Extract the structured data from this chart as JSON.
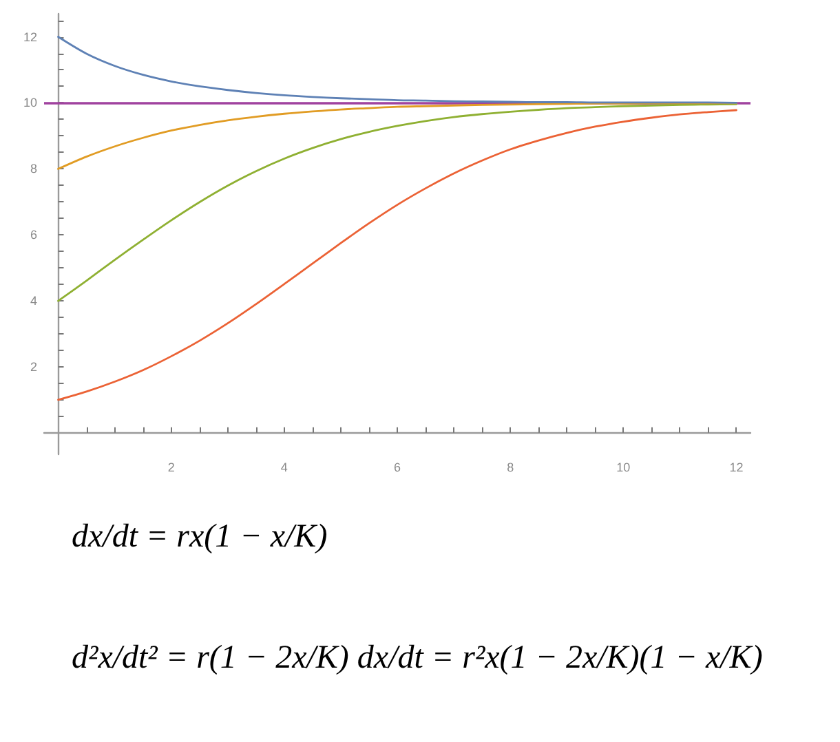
{
  "chart_data": {
    "type": "line",
    "x": [
      0,
      0.5,
      1,
      1.5,
      2,
      2.5,
      3,
      3.5,
      4,
      4.5,
      5,
      5.5,
      6,
      6.5,
      7,
      7.5,
      8,
      8.5,
      9,
      9.5,
      10,
      10.5,
      11,
      11.5,
      12
    ],
    "series": [
      {
        "color": "#5e81b5",
        "values": [
          12.0,
          11.49,
          11.12,
          10.85,
          10.65,
          10.5,
          10.39,
          10.3,
          10.23,
          10.18,
          10.14,
          10.11,
          10.08,
          10.07,
          10.05,
          10.04,
          10.03,
          10.02,
          10.02,
          10.01,
          10.01,
          10.01,
          10.01,
          10.01,
          10.0
        ]
      },
      {
        "color": "#e19c24",
        "values": [
          8.0,
          8.37,
          8.68,
          8.94,
          9.16,
          9.33,
          9.47,
          9.58,
          9.67,
          9.74,
          9.8,
          9.84,
          9.88,
          9.9,
          9.92,
          9.94,
          9.95,
          9.96,
          9.97,
          9.98,
          9.98,
          9.99,
          9.99,
          9.99,
          9.99
        ]
      },
      {
        "color": "#8fb032",
        "values": [
          4.0,
          4.61,
          5.24,
          5.85,
          6.44,
          6.99,
          7.49,
          7.93,
          8.31,
          8.63,
          8.9,
          9.12,
          9.3,
          9.45,
          9.57,
          9.66,
          9.73,
          9.79,
          9.84,
          9.87,
          9.9,
          9.92,
          9.94,
          9.95,
          9.96
        ]
      },
      {
        "color": "#eb6235",
        "values": [
          1.0,
          1.25,
          1.55,
          1.9,
          2.32,
          2.79,
          3.32,
          3.9,
          4.51,
          5.13,
          5.75,
          6.35,
          6.91,
          7.41,
          7.86,
          8.25,
          8.59,
          8.86,
          9.09,
          9.28,
          9.43,
          9.55,
          9.65,
          9.72,
          9.78
        ]
      }
    ],
    "xlim": [
      -0.25,
      12.25
    ],
    "ylim": [
      -0.65,
      12.7
    ],
    "xticks": [
      {
        "value": 0.5,
        "label": null
      },
      {
        "value": 1,
        "label": null
      },
      {
        "value": 1.5,
        "label": null
      },
      2,
      {
        "value": 2.5,
        "label": null
      },
      {
        "value": 3,
        "label": null
      },
      {
        "value": 3.5,
        "label": null
      },
      4,
      {
        "value": 4.5,
        "label": null
      },
      {
        "value": 5,
        "label": null
      },
      {
        "value": 5.5,
        "label": null
      },
      6,
      {
        "value": 6.5,
        "label": null
      },
      {
        "value": 7,
        "label": null
      },
      {
        "value": 7.5,
        "label": null
      },
      8,
      {
        "value": 8.5,
        "label": null
      },
      {
        "value": 9,
        "label": null
      },
      {
        "value": 9.5,
        "label": null
      },
      10,
      {
        "value": 10.5,
        "label": null
      },
      {
        "value": 11,
        "label": null
      },
      {
        "value": 11.5,
        "label": null
      },
      12
    ],
    "yticks": [
      {
        "value": 0.5,
        "label": null
      },
      {
        "value": 1,
        "label": null
      },
      {
        "value": 1.5,
        "label": null
      },
      2,
      {
        "value": 2.5,
        "label": null
      },
      {
        "value": 3,
        "label": null
      },
      {
        "value": 3.5,
        "label": null
      },
      4,
      {
        "value": 4.5,
        "label": null
      },
      {
        "value": 5,
        "label": null
      },
      {
        "value": 5.5,
        "label": null
      },
      6,
      {
        "value": 6.5,
        "label": null
      },
      {
        "value": 7,
        "label": null
      },
      {
        "value": 7.5,
        "label": null
      },
      8,
      {
        "value": 8.5,
        "label": null
      },
      {
        "value": 9,
        "label": null
      },
      {
        "value": 9.5,
        "label": null
      },
      10,
      {
        "value": 10.5,
        "label": null
      },
      {
        "value": 11,
        "label": null
      },
      {
        "value": 11.5,
        "label": null
      },
      12,
      {
        "value": 12.5,
        "label": null
      }
    ],
    "ref_lines": [
      {
        "axis": "y",
        "value": 10,
        "color": "#a0439f",
        "line_style": "solid"
      }
    ],
    "marker": "none",
    "line_style": "solid",
    "annotations": [
      "dx/dt = rx(1 − x/K)",
      "d²x/dt² = r(1 − 2x/K) dx/dt = r²x(1 − 2x/K)(1 − x/K)"
    ]
  }
}
